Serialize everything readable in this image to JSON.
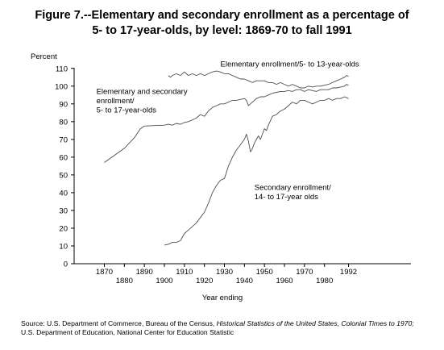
{
  "title_lines": [
    "Figure 7.--Elementary and secondary enrollment as a percentage of",
    "5- to 17-year-olds, by level: 1869-70 to fall 1991"
  ],
  "source": {
    "line1_prefix": "Source:  U.S. Department of Commerce, Bureau of the Census, ",
    "line1_italic": "Historical Statistics of the United States, Colonial Times to 1970;",
    "line2": "U.S. Department of Education, National Center for Education Statistic"
  },
  "chart_data": {
    "type": "line",
    "title": "Figure 7.--Elementary and secondary enrollment as a percentage of 5- to 17-year-olds, by level: 1869-70 to fall 1991",
    "xlabel": "Year ending",
    "ylabel": "Percent",
    "xlim": [
      1865,
      1995
    ],
    "ylim": [
      0,
      110
    ],
    "yticks": [
      0,
      10,
      20,
      30,
      40,
      50,
      60,
      70,
      80,
      90,
      100,
      110
    ],
    "xticks_upper": [
      "1870",
      "1890",
      "1910",
      "1930",
      "1950",
      "1970",
      "1992"
    ],
    "xticks_lower": [
      "1880",
      "1900",
      "1920",
      "1940",
      "1960",
      "1980"
    ],
    "grid": false,
    "legend": "none",
    "series": [
      {
        "name": "Elementary and secondary enrollment/ 5- to 17-year-olds",
        "label_lines": [
          "Elementary and secondary",
          "enrollment/",
          "5- to 17-year-olds"
        ],
        "points": [
          [
            1870,
            57
          ],
          [
            1875,
            61
          ],
          [
            1880,
            65
          ],
          [
            1885,
            71
          ],
          [
            1888,
            76
          ],
          [
            1890,
            77.5
          ],
          [
            1895,
            77.8
          ],
          [
            1900,
            78
          ],
          [
            1902,
            78.5
          ],
          [
            1904,
            78
          ],
          [
            1906,
            79
          ],
          [
            1908,
            78.5
          ],
          [
            1910,
            79.5
          ],
          [
            1912,
            80
          ],
          [
            1914,
            81
          ],
          [
            1916,
            82
          ],
          [
            1918,
            84
          ],
          [
            1920,
            83
          ],
          [
            1922,
            86
          ],
          [
            1924,
            88
          ],
          [
            1926,
            89
          ],
          [
            1928,
            90
          ],
          [
            1930,
            90
          ],
          [
            1932,
            91
          ],
          [
            1934,
            92
          ],
          [
            1936,
            92
          ],
          [
            1938,
            92.5
          ],
          [
            1940,
            93
          ],
          [
            1941,
            92
          ],
          [
            1942,
            89
          ],
          [
            1943,
            90
          ],
          [
            1944,
            91
          ],
          [
            1946,
            93
          ],
          [
            1948,
            94
          ],
          [
            1950,
            94
          ],
          [
            1952,
            95
          ],
          [
            1954,
            96
          ],
          [
            1956,
            96.5
          ],
          [
            1958,
            97
          ],
          [
            1960,
            97
          ],
          [
            1962,
            97.5
          ],
          [
            1964,
            97
          ],
          [
            1966,
            98
          ],
          [
            1968,
            98
          ],
          [
            1970,
            97
          ],
          [
            1972,
            98
          ],
          [
            1974,
            97.5
          ],
          [
            1976,
            97
          ],
          [
            1978,
            98
          ],
          [
            1980,
            98
          ],
          [
            1982,
            98
          ],
          [
            1984,
            99
          ],
          [
            1986,
            99
          ],
          [
            1988,
            99.5
          ],
          [
            1990,
            100
          ],
          [
            1991,
            101
          ],
          [
            1992,
            100.5
          ]
        ]
      },
      {
        "name": "Elementary enrollment/5- to 13-year-olds",
        "label_lines": [
          "Elementary enrollment/5- to 13-year-olds"
        ],
        "points": [
          [
            1902,
            106
          ],
          [
            1903,
            105
          ],
          [
            1904,
            106
          ],
          [
            1906,
            107
          ],
          [
            1908,
            106
          ],
          [
            1910,
            108
          ],
          [
            1911,
            107
          ],
          [
            1912,
            106
          ],
          [
            1914,
            107
          ],
          [
            1916,
            106
          ],
          [
            1918,
            107
          ],
          [
            1920,
            106
          ],
          [
            1922,
            107
          ],
          [
            1924,
            108
          ],
          [
            1926,
            108.5
          ],
          [
            1928,
            108
          ],
          [
            1930,
            107
          ],
          [
            1932,
            107
          ],
          [
            1934,
            106
          ],
          [
            1936,
            105
          ],
          [
            1938,
            104
          ],
          [
            1940,
            104
          ],
          [
            1942,
            103
          ],
          [
            1944,
            102
          ],
          [
            1946,
            103
          ],
          [
            1948,
            103
          ],
          [
            1950,
            103
          ],
          [
            1952,
            102
          ],
          [
            1954,
            102
          ],
          [
            1956,
            101
          ],
          [
            1958,
            102
          ],
          [
            1960,
            101
          ],
          [
            1962,
            100
          ],
          [
            1964,
            101
          ],
          [
            1966,
            100
          ],
          [
            1968,
            99
          ],
          [
            1970,
            99
          ],
          [
            1972,
            100
          ],
          [
            1974,
            99.5
          ],
          [
            1976,
            100
          ],
          [
            1978,
            100
          ],
          [
            1980,
            100.5
          ],
          [
            1982,
            101
          ],
          [
            1984,
            102
          ],
          [
            1986,
            103
          ],
          [
            1988,
            104
          ],
          [
            1990,
            105
          ],
          [
            1991,
            106
          ],
          [
            1992,
            105.5
          ]
        ]
      },
      {
        "name": "Secondary enrollment/ 14- to 17-year olds",
        "label_lines": [
          "Secondary enrollment/",
          "14- to 17-year olds"
        ],
        "points": [
          [
            1900,
            10.5
          ],
          [
            1902,
            11
          ],
          [
            1904,
            12
          ],
          [
            1906,
            12
          ],
          [
            1908,
            13
          ],
          [
            1910,
            17
          ],
          [
            1912,
            19
          ],
          [
            1914,
            21
          ],
          [
            1916,
            23
          ],
          [
            1918,
            26
          ],
          [
            1920,
            29
          ],
          [
            1922,
            34
          ],
          [
            1924,
            40
          ],
          [
            1926,
            44
          ],
          [
            1928,
            47
          ],
          [
            1930,
            48
          ],
          [
            1932,
            55
          ],
          [
            1934,
            60
          ],
          [
            1936,
            64
          ],
          [
            1938,
            67
          ],
          [
            1940,
            70
          ],
          [
            1941,
            73
          ],
          [
            1942,
            69
          ],
          [
            1943,
            63
          ],
          [
            1944,
            65
          ],
          [
            1945,
            68
          ],
          [
            1946,
            70
          ],
          [
            1947,
            72
          ],
          [
            1948,
            70
          ],
          [
            1950,
            76
          ],
          [
            1951,
            75
          ],
          [
            1952,
            78
          ],
          [
            1954,
            83
          ],
          [
            1956,
            84
          ],
          [
            1958,
            86
          ],
          [
            1960,
            87
          ],
          [
            1962,
            89
          ],
          [
            1964,
            91
          ],
          [
            1966,
            90
          ],
          [
            1968,
            92
          ],
          [
            1970,
            92
          ],
          [
            1972,
            91
          ],
          [
            1974,
            90
          ],
          [
            1976,
            91
          ],
          [
            1978,
            92
          ],
          [
            1980,
            92
          ],
          [
            1982,
            93
          ],
          [
            1984,
            92
          ],
          [
            1986,
            93
          ],
          [
            1988,
            93
          ],
          [
            1990,
            94
          ],
          [
            1992,
            93
          ]
        ]
      }
    ]
  }
}
